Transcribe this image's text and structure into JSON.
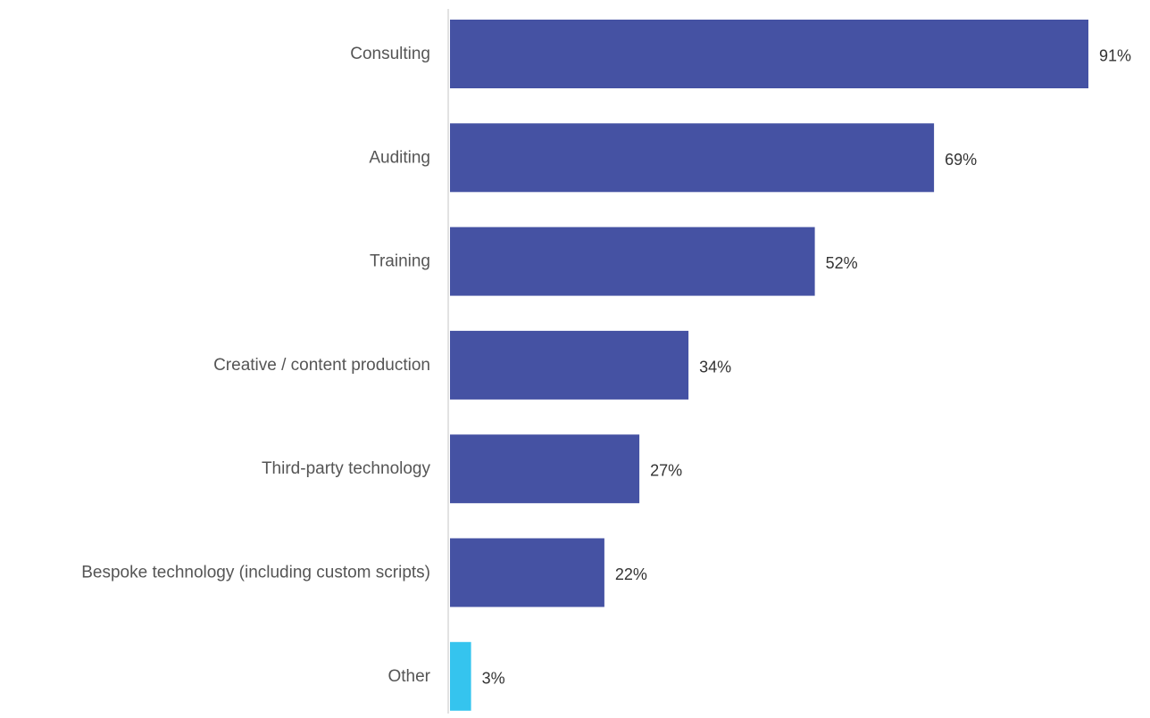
{
  "chart_data": {
    "type": "bar",
    "orientation": "horizontal",
    "title": "",
    "xlabel": "",
    "ylabel": "",
    "unit": "%",
    "xlim": [
      0,
      100
    ],
    "grid": false,
    "legend": "none",
    "categories": [
      "Consulting",
      "Auditing",
      "Training",
      "Creative / content production",
      "Third-party technology",
      "Bespoke technology (including custom scripts)",
      "Other"
    ],
    "values": [
      91,
      69,
      52,
      34,
      27,
      22,
      3
    ],
    "value_labels": [
      "91%",
      "69%",
      "52%",
      "34%",
      "27%",
      "22%",
      "3%"
    ],
    "colors": {
      "primary": "#4552a3",
      "other": "#35c4ee",
      "axis": "#d9d9d9"
    },
    "bar_colors": [
      "primary",
      "primary",
      "primary",
      "primary",
      "primary",
      "primary",
      "other"
    ]
  }
}
